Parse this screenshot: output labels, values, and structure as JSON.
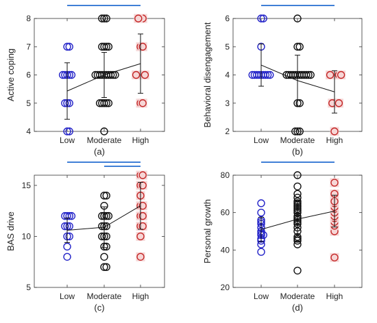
{
  "colors": {
    "low": "#2323c8",
    "moderate": "#111111",
    "high": "#c42828",
    "sigbar": "#3f7fd6",
    "high_fill": "#f6d6d6"
  },
  "chart_data": [
    {
      "type": "scatter",
      "panel": "a",
      "caption": "(a)",
      "ylabel": "Active coping",
      "categories": [
        "Low",
        "Moderate",
        "High"
      ],
      "ylim": [
        4,
        8
      ],
      "yticks": [
        4,
        5,
        6,
        7,
        8
      ],
      "grid": false,
      "series": [
        {
          "group": "Low",
          "values": [
            4,
            4,
            5,
            5,
            5,
            6,
            6,
            6,
            6,
            6,
            7,
            7
          ]
        },
        {
          "group": "Moderate",
          "values": [
            4,
            5,
            5,
            5,
            5,
            5,
            6,
            6,
            6,
            6,
            6,
            6,
            6,
            6,
            6,
            6,
            7,
            7,
            7,
            7,
            8,
            8,
            8
          ]
        },
        {
          "group": "High",
          "values": [
            5,
            5,
            6,
            6,
            6,
            6,
            6,
            7,
            7,
            8,
            8,
            8
          ]
        }
      ],
      "means": [
        5.43,
        6.0,
        6.4
      ],
      "sd": [
        1.0,
        0.8,
        1.05
      ],
      "significance": [
        [
          "Low",
          "High"
        ]
      ]
    },
    {
      "type": "scatter",
      "panel": "b",
      "caption": "(b)",
      "ylabel": "Behavioral disengagement",
      "categories": [
        "Low",
        "Moderate",
        "High"
      ],
      "ylim": [
        2,
        6
      ],
      "yticks": [
        2,
        3,
        4,
        5,
        6
      ],
      "grid": false,
      "series": [
        {
          "group": "Low",
          "values": [
            4,
            4,
            4,
            4,
            4,
            4,
            4,
            4,
            4,
            5,
            6,
            6
          ]
        },
        {
          "group": "Moderate",
          "values": [
            2,
            2,
            2,
            3,
            3,
            4,
            4,
            4,
            4,
            4,
            4,
            4,
            4,
            4,
            4,
            4,
            4,
            5,
            5,
            6
          ]
        },
        {
          "group": "High",
          "values": [
            2,
            3,
            3,
            3,
            3,
            4,
            4,
            4,
            4,
            4,
            4
          ]
        }
      ],
      "means": [
        4.35,
        3.8,
        3.4
      ],
      "sd": [
        0.75,
        0.9,
        0.75
      ],
      "significance": [
        [
          "Low",
          "High"
        ]
      ]
    },
    {
      "type": "scatter",
      "panel": "c",
      "caption": "(c)",
      "ylabel": "BAS drive",
      "categories": [
        "Low",
        "Moderate",
        "High"
      ],
      "ylim": [
        5,
        16
      ],
      "yticks": [
        5,
        10,
        15
      ],
      "grid": false,
      "series": [
        {
          "group": "Low",
          "values": [
            8,
            9,
            10,
            10,
            11,
            11,
            11,
            12,
            12,
            12,
            12
          ]
        },
        {
          "group": "Moderate",
          "values": [
            7,
            7,
            8,
            9,
            9,
            10,
            10,
            10,
            11,
            11,
            11,
            12,
            12,
            12,
            12,
            13,
            14,
            14
          ]
        },
        {
          "group": "High",
          "values": [
            8,
            10,
            11,
            11,
            12,
            12,
            13,
            13,
            14,
            15,
            15,
            16,
            16
          ]
        }
      ],
      "means": [
        10.6,
        10.9,
        13.0
      ],
      "sd": [
        1.2,
        2.0,
        2.3
      ],
      "significance": [
        [
          "Low",
          "High"
        ],
        [
          "Moderate",
          "High"
        ]
      ]
    },
    {
      "type": "scatter",
      "panel": "d",
      "caption": "(d)",
      "ylabel": "Personal growth",
      "categories": [
        "Low",
        "Moderate",
        "High"
      ],
      "ylim": [
        20,
        80
      ],
      "yticks": [
        20,
        40,
        60,
        80
      ],
      "grid": false,
      "series": [
        {
          "group": "Low",
          "values": [
            39,
            43,
            45,
            46,
            48,
            48,
            49,
            50,
            52,
            54,
            55,
            56,
            60,
            65
          ]
        },
        {
          "group": "Moderate",
          "values": [
            29,
            43,
            45,
            46,
            47,
            50,
            52,
            54,
            55,
            56,
            57,
            58,
            60,
            61,
            62,
            63,
            64,
            65,
            66,
            68,
            70,
            74,
            80
          ]
        },
        {
          "group": "High",
          "values": [
            36,
            50,
            53,
            55,
            57,
            58,
            60,
            62,
            63,
            65,
            66,
            70,
            76
          ]
        }
      ],
      "means": [
        51.0,
        56.5,
        60.8
      ],
      "sd": [
        6.5,
        9.5,
        8.5
      ],
      "significance": [
        [
          "Low",
          "High"
        ]
      ]
    }
  ]
}
